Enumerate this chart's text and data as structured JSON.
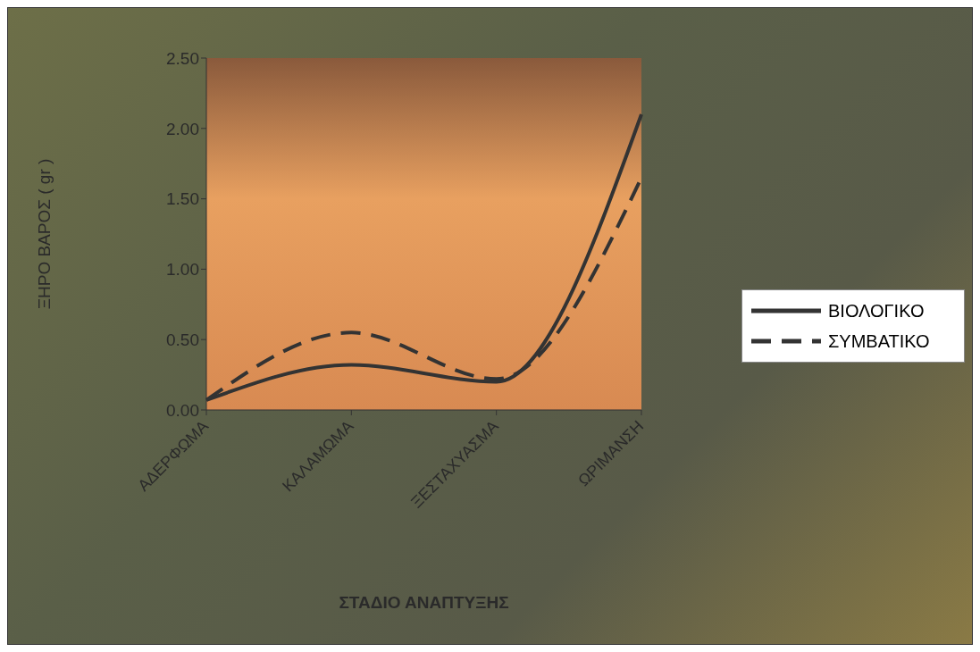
{
  "chart_data": {
    "type": "line",
    "xlabel": "ΣΤΑΔΙΟ ΑΝΑΠΤΥΞΗΣ",
    "ylabel": "ΞΗΡΟ ΒΑΡΟΣ ( gr )",
    "categories": [
      "ΑΔΕΡΦΩΜΑ",
      "ΚΑΛΑΜΩΜΑ",
      "ΞΕΣΤΑΧΥΑΣΜΑ",
      "ΩΡΙΜΑΝΣΗ"
    ],
    "series": [
      {
        "name": "ΒΙΟΛΟΓΙΚΟ",
        "color": "#333333",
        "line_style": "solid",
        "values": [
          0.07,
          0.32,
          0.2,
          2.1
        ]
      },
      {
        "name": "ΣΥΜΒΑΤΙΚΟ",
        "color": "#333333",
        "line_style": "dashed",
        "values": [
          0.07,
          0.55,
          0.22,
          1.65
        ]
      }
    ],
    "ylim": [
      0,
      2.5
    ],
    "yticks": [
      {
        "value": 0,
        "label": "0.00"
      },
      {
        "value": 0.5,
        "label": "0.50"
      },
      {
        "value": 1,
        "label": "1.00"
      },
      {
        "value": 1.5,
        "label": "1.50"
      },
      {
        "value": 2,
        "label": "2.00"
      },
      {
        "value": 2.5,
        "label": "2.50"
      }
    ],
    "legend": "right",
    "marker": "none"
  }
}
